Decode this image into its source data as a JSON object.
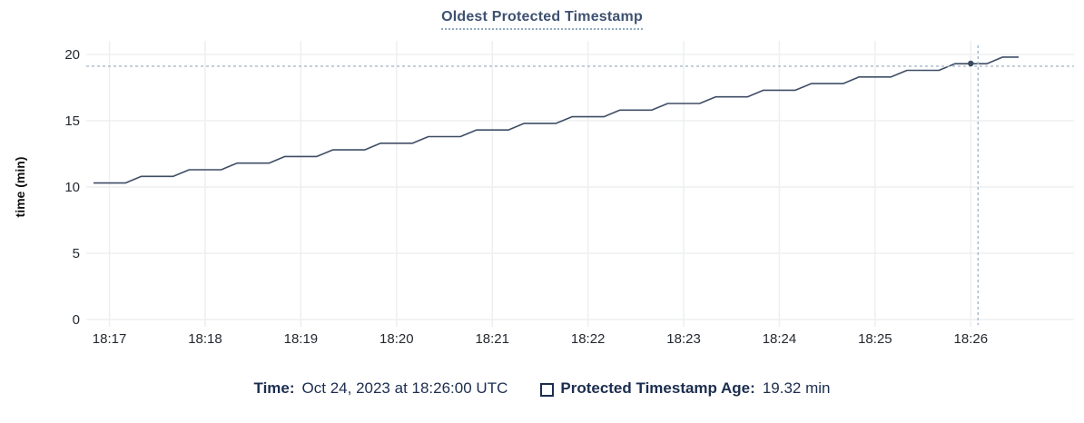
{
  "header": {
    "title": "Oldest Protected Timestamp"
  },
  "chart_data": {
    "type": "line",
    "title": "Oldest Protected Timestamp",
    "xlabel": "",
    "ylabel": "time (min)",
    "ylim": [
      0,
      20
    ],
    "yticks": [
      0,
      5,
      10,
      15,
      20
    ],
    "xticks": [
      "18:17",
      "18:18",
      "18:19",
      "18:20",
      "18:21",
      "18:22",
      "18:23",
      "18:24",
      "18:25",
      "18:26"
    ],
    "grid": true,
    "legend_position": "bottom",
    "x_start": "18:16:50",
    "x_end": "18:26:30",
    "sample_interval_seconds": 10,
    "series": [
      {
        "name": "Protected Timestamp Age",
        "unit": "min",
        "values": [
          10.3,
          10.3,
          10.3,
          10.8,
          10.8,
          10.8,
          11.3,
          11.3,
          11.3,
          11.8,
          11.8,
          11.8,
          12.3,
          12.3,
          12.3,
          12.8,
          12.8,
          12.8,
          13.3,
          13.3,
          13.3,
          13.8,
          13.8,
          13.8,
          14.3,
          14.3,
          14.3,
          14.8,
          14.8,
          14.8,
          15.3,
          15.3,
          15.3,
          15.8,
          15.8,
          15.8,
          16.3,
          16.3,
          16.3,
          16.8,
          16.8,
          16.8,
          17.3,
          17.3,
          17.3,
          17.8,
          17.8,
          17.8,
          18.3,
          18.3,
          18.3,
          18.8,
          18.8,
          18.8,
          19.3,
          19.3,
          19.3,
          19.8,
          19.8
        ]
      }
    ],
    "hover_point": {
      "time": "18:26:00",
      "value": 19.32,
      "crosshair": true
    }
  },
  "legend": {
    "time_label": "Time:",
    "time_value": "Oct 24, 2023 at 18:26:00 UTC",
    "series_label": "Protected Timestamp Age:",
    "series_value": "19.32 min",
    "series_checkbox_checked": false
  },
  "colors": {
    "navy": "#1c2e4f",
    "title_text": "#3e5170",
    "title_underline": "#90a9c2",
    "line": "#3f4e66",
    "grid": "#edeff1",
    "axis_text": "#24292f",
    "crosshair": "#a6b9cb",
    "dot": "#394a63"
  }
}
